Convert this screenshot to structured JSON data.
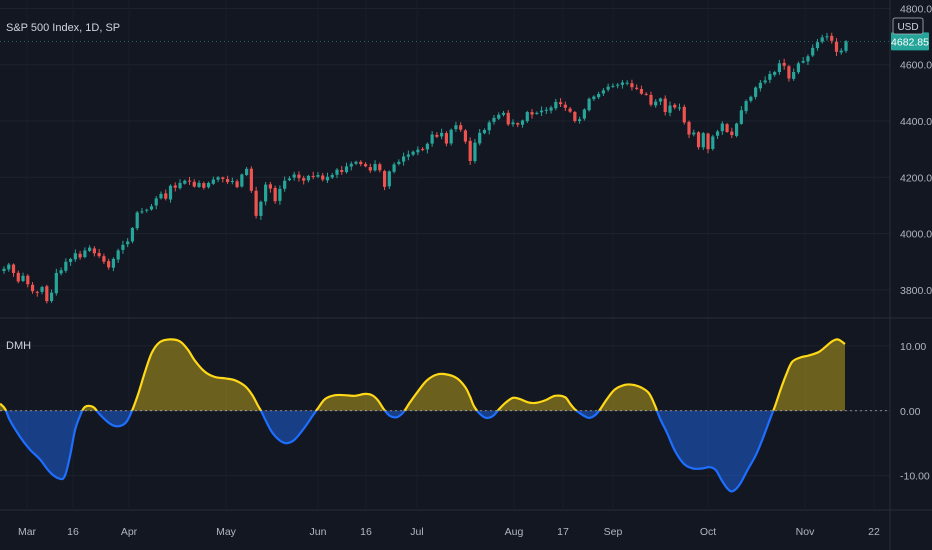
{
  "chart_data": [
    {
      "type": "candlestick",
      "title": "S&P 500 Index, 1D, SP",
      "currency_label": "USD",
      "last_price_label": "4682.85",
      "y_ticks": [
        "3800.00",
        "4000.00",
        "4200.00",
        "4400.00",
        "4600.00",
        "4800.00"
      ],
      "ylim": [
        3700,
        4830
      ],
      "last_close": 4682.85,
      "up_color": "#26a69a",
      "down_color": "#ef5350",
      "closes": [
        3875,
        3890,
        3860,
        3830,
        3850,
        3820,
        3795,
        3790,
        3810,
        3760,
        3790,
        3860,
        3870,
        3900,
        3910,
        3930,
        3915,
        3940,
        3950,
        3930,
        3920,
        3900,
        3880,
        3910,
        3940,
        3960,
        3972,
        4020,
        4075,
        4079,
        4085,
        4097,
        4125,
        4141,
        4124,
        4170,
        4163,
        4180,
        4188,
        4186,
        4167,
        4180,
        4163,
        4180,
        4192,
        4200,
        4194,
        4183,
        4187,
        4165,
        4210,
        4230,
        4152,
        4063,
        4113,
        4174,
        4160,
        4115,
        4159,
        4188,
        4196,
        4210,
        4197,
        4188,
        4205,
        4204,
        4208,
        4192,
        4202,
        4208,
        4227,
        4219,
        4239,
        4248,
        4255,
        4247,
        4239,
        4224,
        4247,
        4225,
        4166,
        4221,
        4246,
        4255,
        4274,
        4281,
        4291,
        4298,
        4300,
        4319,
        4352,
        4344,
        4358,
        4320,
        4369,
        4385,
        4369,
        4327,
        4258,
        4323,
        4358,
        4368,
        4395,
        4411,
        4422,
        4429,
        4388,
        4395,
        4387,
        4402,
        4432,
        4423,
        4429,
        4437,
        4440,
        4448,
        4468,
        4460,
        4447,
        4433,
        4400,
        4406,
        4441,
        4479,
        4487,
        4496,
        4509,
        4522,
        4525,
        4529,
        4537,
        4536,
        4520,
        4514,
        4497,
        4493,
        4458,
        4469,
        4480,
        4432,
        4455,
        4448,
        4448,
        4395,
        4352,
        4359,
        4307,
        4357,
        4300,
        4345,
        4363,
        4391,
        4361,
        4350,
        4391,
        4438,
        4471,
        4486,
        4519,
        4536,
        4544,
        4567,
        4574,
        4605,
        4596,
        4551,
        4574,
        4605,
        4613,
        4630,
        4660,
        4680,
        4697,
        4701,
        4685,
        4646,
        4650,
        4682.85
      ]
    },
    {
      "type": "area",
      "series": [
        {
          "name": "DMH"
        }
      ],
      "y_ticks": [
        "10.00",
        "0.00",
        "-10.00"
      ],
      "ylim": [
        -15,
        14
      ],
      "positive_color": "#ffd817",
      "negative_color": "#1e6fff",
      "x_labels": [
        "Mar",
        "16",
        "Apr",
        "May",
        "Jun",
        "16",
        "Jul",
        "Aug",
        "17",
        "Sep",
        "Oct",
        "Nov",
        "22"
      ],
      "points": [
        [
          0,
          1.1
        ],
        [
          5,
          0.3
        ],
        [
          10,
          -1.5
        ],
        [
          20,
          -4
        ],
        [
          30,
          -6
        ],
        [
          40,
          -7.5
        ],
        [
          50,
          -9.5
        ],
        [
          60,
          -10.5
        ],
        [
          65,
          -10
        ],
        [
          70,
          -7
        ],
        [
          75,
          -3
        ],
        [
          80,
          -0.8
        ],
        [
          85,
          0.6
        ],
        [
          93,
          0.6
        ],
        [
          100,
          -0.6
        ],
        [
          110,
          -2
        ],
        [
          118,
          -2.4
        ],
        [
          126,
          -1.8
        ],
        [
          132,
          0
        ],
        [
          138,
          2.5
        ],
        [
          145,
          6
        ],
        [
          152,
          9
        ],
        [
          160,
          10.6
        ],
        [
          170,
          11
        ],
        [
          180,
          10.7
        ],
        [
          188,
          9.4
        ],
        [
          195,
          7.7
        ],
        [
          205,
          6
        ],
        [
          215,
          5.2
        ],
        [
          225,
          5
        ],
        [
          235,
          4.7
        ],
        [
          245,
          3.8
        ],
        [
          252,
          2.5
        ],
        [
          258,
          0.8
        ],
        [
          262,
          -0.3
        ],
        [
          266,
          -1.6
        ],
        [
          272,
          -3.3
        ],
        [
          280,
          -4.6
        ],
        [
          287,
          -5
        ],
        [
          295,
          -4.4
        ],
        [
          305,
          -2.5
        ],
        [
          313,
          -0.7
        ],
        [
          318,
          0.4
        ],
        [
          325,
          1.8
        ],
        [
          335,
          2.4
        ],
        [
          345,
          2.4
        ],
        [
          355,
          2.3
        ],
        [
          365,
          2.6
        ],
        [
          372,
          2.4
        ],
        [
          378,
          1.6
        ],
        [
          384,
          0.2
        ],
        [
          390,
          -0.8
        ],
        [
          397,
          -1
        ],
        [
          403,
          -0.3
        ],
        [
          410,
          1.3
        ],
        [
          418,
          3
        ],
        [
          427,
          4.7
        ],
        [
          437,
          5.6
        ],
        [
          447,
          5.6
        ],
        [
          457,
          5
        ],
        [
          465,
          3.7
        ],
        [
          470,
          2.2
        ],
        [
          474,
          0.7
        ],
        [
          480,
          -0.5
        ],
        [
          486,
          -1.1
        ],
        [
          493,
          -0.8
        ],
        [
          500,
          0.4
        ],
        [
          506,
          1.3
        ],
        [
          513,
          2
        ],
        [
          520,
          1.8
        ],
        [
          528,
          1.3
        ],
        [
          535,
          1.2
        ],
        [
          545,
          1.6
        ],
        [
          555,
          2.3
        ],
        [
          565,
          2.1
        ],
        [
          570,
          1.1
        ],
        [
          575,
          0.2
        ],
        [
          582,
          -0.6
        ],
        [
          589,
          -1.1
        ],
        [
          595,
          -0.7
        ],
        [
          600,
          0.2
        ],
        [
          607,
          1.8
        ],
        [
          615,
          3.3
        ],
        [
          625,
          4
        ],
        [
          633,
          4
        ],
        [
          641,
          3.6
        ],
        [
          649,
          2.7
        ],
        [
          655,
          0.8
        ],
        [
          660,
          -1.2
        ],
        [
          667,
          -3.4
        ],
        [
          675,
          -6.2
        ],
        [
          684,
          -8.2
        ],
        [
          693,
          -8.9
        ],
        [
          702,
          -8.9
        ],
        [
          710,
          -8.7
        ],
        [
          716,
          -9.2
        ],
        [
          722,
          -10.8
        ],
        [
          728,
          -12.1
        ],
        [
          733,
          -12.4
        ],
        [
          740,
          -11.3
        ],
        [
          748,
          -9
        ],
        [
          756,
          -6.8
        ],
        [
          763,
          -4.2
        ],
        [
          770,
          -1.3
        ],
        [
          775,
          0.7
        ],
        [
          780,
          3
        ],
        [
          786,
          5.5
        ],
        [
          792,
          7.5
        ],
        [
          800,
          8.2
        ],
        [
          808,
          8.5
        ],
        [
          818,
          9
        ],
        [
          825,
          9.8
        ],
        [
          832,
          10.7
        ],
        [
          838,
          11
        ],
        [
          845,
          10.3
        ]
      ]
    }
  ]
}
